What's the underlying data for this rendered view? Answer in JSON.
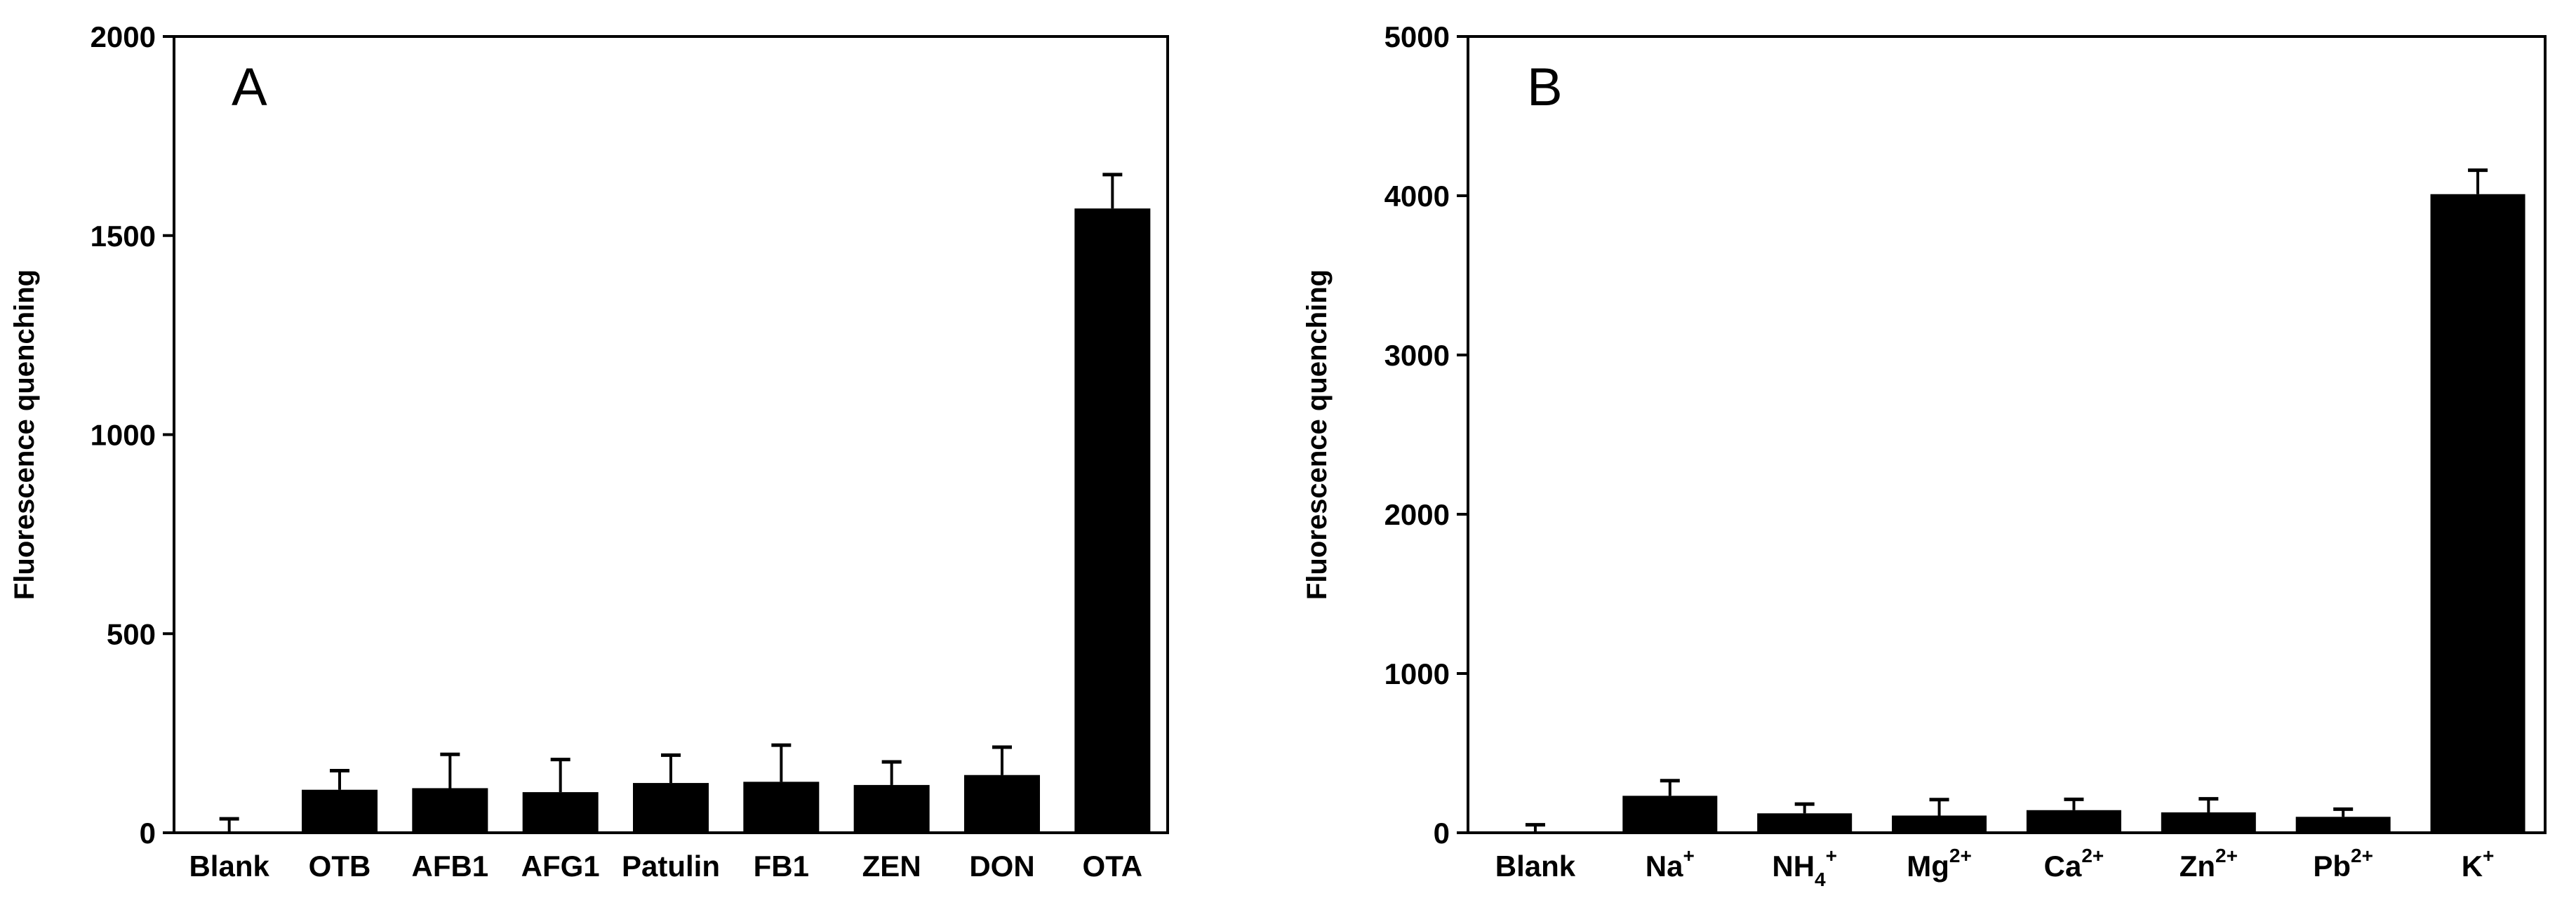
{
  "chart_data": [
    {
      "type": "bar",
      "panel_label": "A",
      "title": "",
      "xlabel": "",
      "ylabel": "Fluorescence quenching",
      "ylim": [
        0,
        2000
      ],
      "yticks": [
        "0",
        "500",
        "1000",
        "1500",
        "2000"
      ],
      "ytick_values": [
        0,
        500,
        1000,
        1500,
        2000
      ],
      "categories": [
        "Blank",
        "OTB",
        "AFB1",
        "AFG1",
        "Patulin",
        "FB1",
        "ZEN",
        "DON",
        "OTA"
      ],
      "category_sup": [
        "",
        "",
        "",
        "",
        "",
        "",
        "",
        "",
        ""
      ],
      "category_sub": [
        "",
        "",
        "",
        "",
        "",
        "",
        "",
        "",
        ""
      ],
      "values": [
        0,
        108,
        112,
        102,
        125,
        128,
        120,
        145,
        1568
      ],
      "errors": [
        35,
        48,
        85,
        82,
        70,
        92,
        58,
        70,
        85
      ],
      "bar_color": "#000000",
      "grid": false
    },
    {
      "type": "bar",
      "panel_label": "B",
      "title": "",
      "xlabel": "",
      "ylabel": "Fluorescence quenching",
      "ylim": [
        0,
        5000
      ],
      "yticks": [
        "0",
        "1000",
        "2000",
        "3000",
        "4000",
        "5000"
      ],
      "ytick_values": [
        0,
        1000,
        2000,
        3000,
        4000,
        5000
      ],
      "categories": [
        "Blank",
        "Na",
        "NH",
        "Mg",
        "Ca",
        "Zn",
        "Pb",
        "K"
      ],
      "category_sup": [
        "",
        "+",
        "+",
        "2+",
        "2+",
        "2+",
        "2+",
        "+"
      ],
      "category_sub": [
        "",
        "",
        "4",
        "",
        "",
        "",
        "",
        ""
      ],
      "values": [
        0,
        232,
        122,
        108,
        142,
        128,
        100,
        4010
      ],
      "errors": [
        50,
        95,
        58,
        100,
        68,
        85,
        48,
        150
      ],
      "bar_color": "#000000",
      "grid": false
    }
  ]
}
